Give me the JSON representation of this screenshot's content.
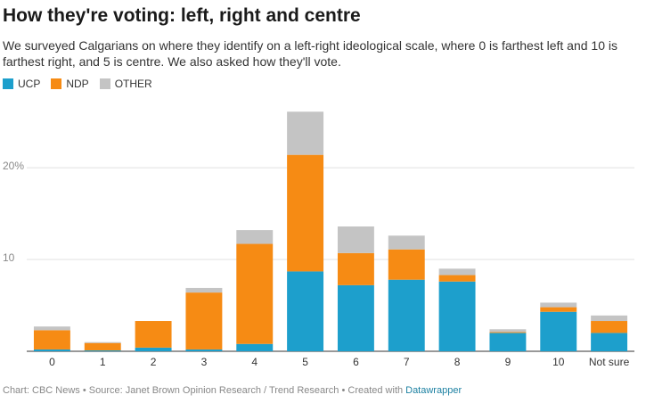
{
  "chart_data": {
    "type": "stacked_bar",
    "title": "How they're voting: left, right and centre",
    "subtitle": "We surveyed Calgarians on where they identify on a left-right ideological scale, where 0 is farthest left and 10 is farthest right, and 5 is centre. We also asked how they'll vote.",
    "categories": [
      "0",
      "1",
      "2",
      "3",
      "4",
      "5",
      "6",
      "7",
      "8",
      "9",
      "10",
      "Not sure"
    ],
    "series": [
      {
        "name": "UCP",
        "color": "#1d9fcc",
        "values": [
          0.2,
          0.1,
          0.4,
          0.2,
          0.8,
          8.7,
          7.2,
          7.8,
          7.6,
          2.0,
          4.3,
          2.0
        ]
      },
      {
        "name": "NDP",
        "color": "#f68b14",
        "values": [
          2.1,
          0.8,
          2.9,
          6.2,
          10.9,
          12.7,
          3.5,
          3.3,
          0.7,
          0.1,
          0.5,
          1.3
        ]
      },
      {
        "name": "OTHER",
        "color": "#c4c4c4",
        "values": [
          0.4,
          0.1,
          0,
          0.5,
          1.5,
          4.7,
          2.9,
          1.5,
          0.7,
          0.3,
          0.5,
          0.6
        ]
      }
    ],
    "ylim": [
      0,
      27
    ],
    "yticks": [
      10,
      {
        "value": 20,
        "label": "20%"
      }
    ],
    "grid": true,
    "footer": {
      "credit": "Chart: CBC News • Source: Janet Brown Opinion Research / Trend Research • Created with",
      "link": "Datawrapper"
    }
  }
}
